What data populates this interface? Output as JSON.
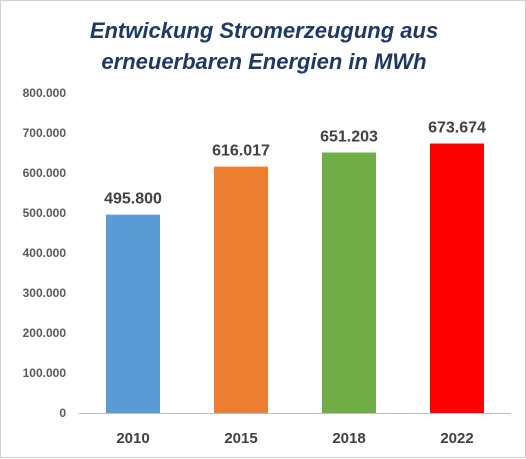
{
  "chart_data": {
    "type": "bar",
    "title_lines": [
      "Entwickung Stromerzeugung aus",
      "erneuerbaren Energien in MWh"
    ],
    "categories": [
      "2010",
      "2015",
      "2018",
      "2022"
    ],
    "values": [
      495800,
      616017,
      651203,
      673674
    ],
    "data_labels": [
      "495.800",
      "616.017",
      "651.203",
      "673.674"
    ],
    "bar_colors": [
      "#5b9bd5",
      "#ed7d31",
      "#70ad47",
      "#ff0000"
    ],
    "ylim": [
      0,
      800000
    ],
    "y_ticks": [
      0,
      100000,
      200000,
      300000,
      400000,
      500000,
      600000,
      700000,
      800000
    ],
    "y_tick_labels": [
      "0",
      "100.000",
      "200.000",
      "300.000",
      "400.000",
      "500.000",
      "600.000",
      "700.000",
      "800.000"
    ],
    "grid": false,
    "legend": "none"
  }
}
